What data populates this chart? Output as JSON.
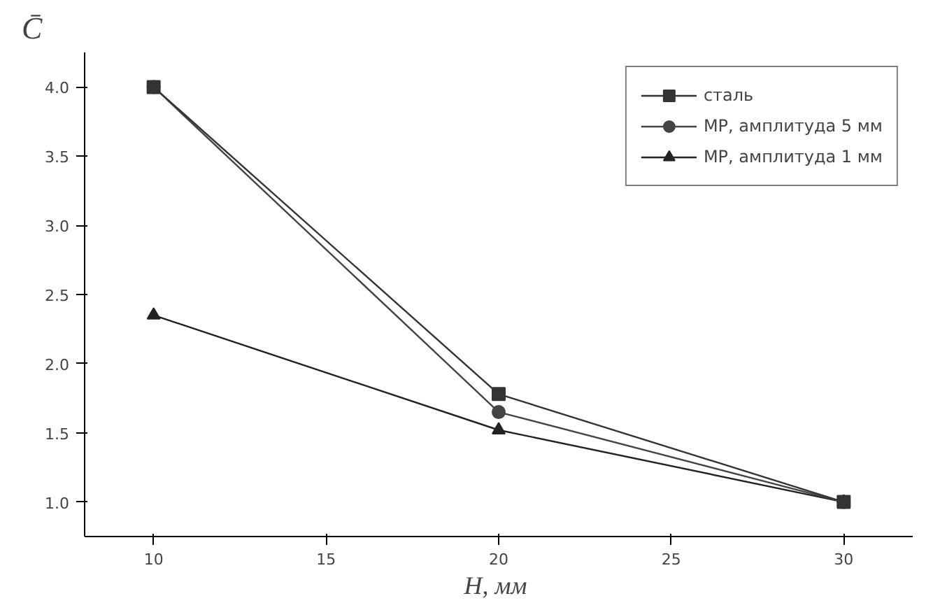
{
  "chart_data": {
    "type": "line",
    "xlabel": "H,  мм",
    "ylabel": "C̄",
    "x": [
      10,
      20,
      30
    ],
    "series": [
      {
        "name": "сталь",
        "color": "#333333",
        "values": [
          4.0,
          1.78,
          1.0
        ],
        "marker": "square"
      },
      {
        "name": "МР, амплитуда 5 мм",
        "color": "#444444",
        "values": [
          4.0,
          1.65,
          1.0
        ],
        "marker": "circle"
      },
      {
        "name": "МР, амплитуда 1 мм",
        "color": "#222222",
        "values": [
          2.35,
          1.52,
          1.0
        ],
        "marker": "triangle"
      }
    ],
    "xlim": [
      8,
      32
    ],
    "ylim": [
      0.75,
      4.25
    ],
    "xticks": [
      10,
      15,
      20,
      25,
      30
    ],
    "yticks": [
      {
        "value": 1.0,
        "label": "1.0"
      },
      {
        "value": 1.5,
        "label": "1.5"
      },
      {
        "value": 2.0,
        "label": "2.0"
      },
      {
        "value": 2.5,
        "label": "2.5"
      },
      {
        "value": 3.0,
        "label": "3.0"
      },
      {
        "value": 3.5,
        "label": "3.5"
      },
      {
        "value": 4.0,
        "label": "4.0"
      }
    ],
    "grid": false,
    "legend": "top right",
    "line_style": "solid"
  }
}
